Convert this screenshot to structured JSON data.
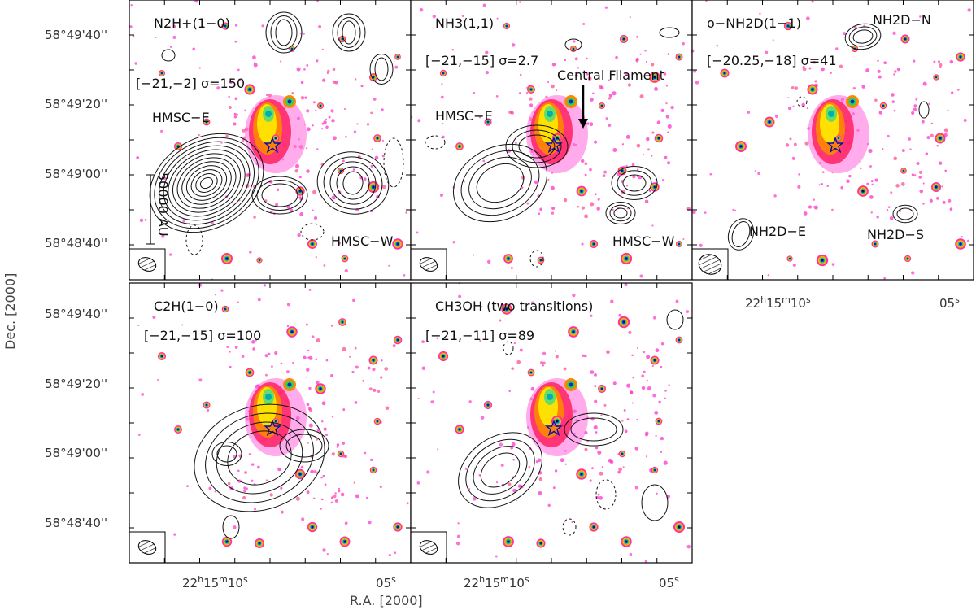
{
  "figure": {
    "xlabel": "R.A. [2000]",
    "ylabel": "Dec. [2000]",
    "dec_ticks": [
      "58°49'40''",
      "58°49'20''",
      "58°49'00''",
      "58°48'40''"
    ],
    "ra_ticks": {
      "major": "22h15m10s",
      "minor": "05s"
    },
    "scalebar_label": "50000 AU"
  },
  "panels": [
    {
      "id": "n2h",
      "title": "N2H+(1−0)",
      "range_text": "[−21,−2] σ=150",
      "labels": [
        "HMSC−E",
        "HMSC−W"
      ]
    },
    {
      "id": "nh3",
      "title": "NH3(1,1)",
      "range_text": "[−21,−15] σ=2.7",
      "labels": [
        "HMSC−E",
        "HMSC−W",
        "Central Filament"
      ]
    },
    {
      "id": "nh2d",
      "title": "o−NH2D(1−1)",
      "range_text": "[−20.25,−18] σ=41",
      "labels": [
        "NH2D−N",
        "NH2D−E",
        "NH2D−S"
      ]
    },
    {
      "id": "c2h",
      "title": "C2H(1−0)",
      "range_text": "[−21,−15] σ=100",
      "labels": []
    },
    {
      "id": "ch3oh",
      "title": "CH3OH (two transitions)",
      "range_text": "[−21,−11] σ=89",
      "labels": []
    }
  ],
  "colors": {
    "frame": "#000000",
    "contour": "#111111",
    "cmap_low": "#ff33cc",
    "cmap_mid": "#ff2040",
    "cmap_high": "#ffe000",
    "cmap_peak": "#00a0a0"
  }
}
